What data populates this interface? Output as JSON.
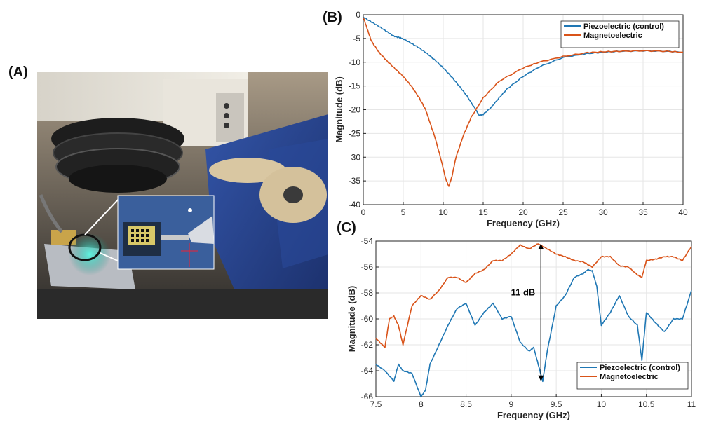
{
  "panels": {
    "a": "(A)",
    "b": "(B)",
    "c": "(C)"
  },
  "colors": {
    "piezo": "#1f77b4",
    "magneto": "#d95319",
    "grid": "#e6e6e6"
  },
  "photo": {
    "description_icon": "probe-station-photo"
  },
  "chart_data": [
    {
      "type": "line",
      "xlabel": "Frequency (GHz)",
      "ylabel": "Magnitude (dB)",
      "xlim": [
        0,
        40
      ],
      "ylim": [
        -40,
        0
      ],
      "xticks": [
        0,
        5,
        10,
        15,
        20,
        25,
        30,
        35,
        40
      ],
      "yticks": [
        0,
        -5,
        -10,
        -15,
        -20,
        -25,
        -30,
        -35,
        -40
      ],
      "grid": true,
      "legend_position": "top-right",
      "series": [
        {
          "name": "Piezoelectric (control)",
          "color": "#1f77b4",
          "x": [
            0,
            1,
            2,
            3,
            3.8,
            4.5,
            5,
            6,
            7,
            8,
            9,
            10,
            11,
            12,
            13,
            14,
            14.5,
            15,
            16,
            17,
            18,
            20,
            22,
            25,
            28,
            30,
            32,
            35,
            38,
            40
          ],
          "y": [
            -0.5,
            -1.5,
            -2.5,
            -3.6,
            -4.5,
            -4.8,
            -5.1,
            -6,
            -7,
            -8.2,
            -9.6,
            -11.2,
            -13,
            -15,
            -17.2,
            -19.8,
            -21.2,
            -21,
            -19.5,
            -17.5,
            -15.6,
            -13,
            -11,
            -9,
            -8.2,
            -7.9,
            -7.7,
            -7.6,
            -7.7,
            -7.9
          ]
        },
        {
          "name": "Magnetoelectric",
          "color": "#d95319",
          "x": [
            0,
            0.5,
            1,
            2,
            3,
            4,
            5,
            6,
            7,
            7.8,
            8.2,
            9,
            9.8,
            10.3,
            10.7,
            11.1,
            11.6,
            12.5,
            13.5,
            15,
            17,
            20,
            22,
            25,
            28,
            30,
            32,
            35,
            38,
            40
          ],
          "y": [
            -0.5,
            -3,
            -5.5,
            -8,
            -9.8,
            -11.4,
            -13,
            -15,
            -17.5,
            -20,
            -22,
            -26,
            -31,
            -34.5,
            -36.2,
            -34,
            -30,
            -25.5,
            -21.6,
            -17.5,
            -14,
            -11.2,
            -10,
            -8.8,
            -8,
            -7.8,
            -7.7,
            -7.6,
            -7.7,
            -7.9
          ]
        }
      ]
    },
    {
      "type": "line",
      "xlabel": "Frequency (GHz)",
      "ylabel": "Magnitude (dB)",
      "xlim": [
        7.5,
        11
      ],
      "ylim": [
        -66,
        -54
      ],
      "xticks": [
        7.5,
        8,
        8.5,
        9,
        9.5,
        10,
        10.5,
        11
      ],
      "yticks": [
        -54,
        -56,
        -58,
        -60,
        -62,
        -64,
        -66
      ],
      "grid": true,
      "legend_position": "bottom-right",
      "annotation": {
        "text": "11 dB",
        "x": 9.33,
        "y_top": -54.2,
        "y_bottom": -64.8
      },
      "series": [
        {
          "name": "Piezoelectric (control)",
          "color": "#1f77b4",
          "x": [
            7.5,
            7.6,
            7.7,
            7.75,
            7.8,
            7.9,
            8.0,
            8.05,
            8.1,
            8.2,
            8.3,
            8.4,
            8.5,
            8.6,
            8.7,
            8.8,
            8.9,
            9.0,
            9.1,
            9.2,
            9.25,
            9.3,
            9.35,
            9.4,
            9.5,
            9.6,
            9.7,
            9.8,
            9.85,
            9.9,
            9.95,
            10.0,
            10.1,
            10.2,
            10.3,
            10.4,
            10.45,
            10.5,
            10.6,
            10.7,
            10.8,
            10.9,
            11.0
          ],
          "y": [
            -63.5,
            -64,
            -64.8,
            -63.5,
            -64,
            -64.2,
            -66,
            -65.5,
            -63.5,
            -62,
            -60.5,
            -59.2,
            -58.8,
            -60.5,
            -59.5,
            -58.8,
            -60,
            -59.8,
            -61.8,
            -62.5,
            -62.2,
            -63.5,
            -64.8,
            -62.5,
            -59,
            -58.2,
            -56.8,
            -56.5,
            -56.2,
            -56.3,
            -57.5,
            -60.5,
            -59.5,
            -58.2,
            -59.8,
            -60.5,
            -63.2,
            -59.5,
            -60.3,
            -61,
            -60,
            -60,
            -57.8
          ]
        },
        {
          "name": "Magnetoelectric",
          "color": "#d95319",
          "x": [
            7.5,
            7.6,
            7.65,
            7.7,
            7.75,
            7.8,
            7.9,
            8.0,
            8.1,
            8.2,
            8.3,
            8.4,
            8.5,
            8.6,
            8.7,
            8.8,
            8.9,
            9.0,
            9.1,
            9.2,
            9.3,
            9.4,
            9.5,
            9.6,
            9.7,
            9.8,
            9.9,
            10.0,
            10.1,
            10.2,
            10.3,
            10.4,
            10.45,
            10.5,
            10.6,
            10.7,
            10.8,
            10.9,
            11.0
          ],
          "y": [
            -61.5,
            -62.2,
            -60,
            -59.8,
            -60.5,
            -62,
            -59,
            -58.2,
            -58.5,
            -57.8,
            -56.8,
            -56.8,
            -57.2,
            -56.5,
            -56.2,
            -55.5,
            -55.5,
            -55,
            -54.3,
            -54.6,
            -54.2,
            -54.6,
            -55,
            -55.2,
            -55.5,
            -55.6,
            -56,
            -55.2,
            -55.2,
            -55.9,
            -56,
            -56.6,
            -56.8,
            -55.5,
            -55.4,
            -55.2,
            -55.2,
            -55.5,
            -54.4
          ]
        }
      ]
    }
  ]
}
